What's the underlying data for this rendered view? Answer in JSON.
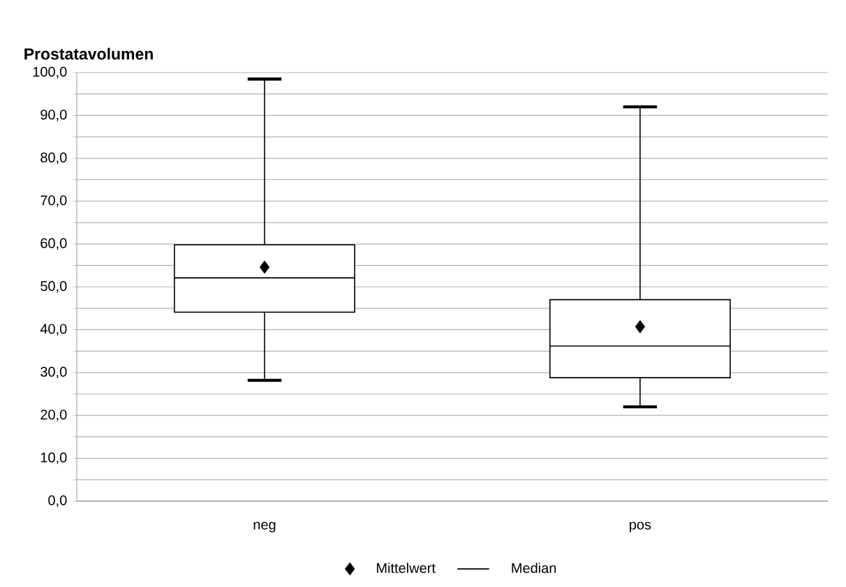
{
  "chart_data": {
    "type": "box",
    "title": "Prostatavolumen",
    "categories": [
      "neg",
      "pos"
    ],
    "series": [
      {
        "name": "Mittelwert",
        "type": "scatter",
        "marker": "diamond",
        "color": "#000000",
        "x": [
          "neg",
          "pos"
        ],
        "values": [
          54.6,
          40.7
        ]
      },
      {
        "name": "Median",
        "type": "box",
        "color": "#000000",
        "boxes": [
          {
            "low": 28.2,
            "q1": 44.1,
            "median": 52.1,
            "q3": 59.8,
            "high": 98.5
          },
          {
            "low": 22.0,
            "q1": 28.8,
            "median": 36.2,
            "q3": 47.0,
            "high": 92.0
          }
        ]
      }
    ],
    "ylim": [
      0,
      100
    ],
    "yticks": [
      {
        "value": 0,
        "label": "0,0"
      },
      {
        "value": 5,
        "label": null
      },
      {
        "value": 10,
        "label": "10,0"
      },
      {
        "value": 15,
        "label": null
      },
      {
        "value": 20,
        "label": "20,0"
      },
      {
        "value": 25,
        "label": null
      },
      {
        "value": 30,
        "label": "30,0"
      },
      {
        "value": 35,
        "label": null
      },
      {
        "value": 40,
        "label": "40,0"
      },
      {
        "value": 45,
        "label": null
      },
      {
        "value": 50,
        "label": "50,0"
      },
      {
        "value": 55,
        "label": null
      },
      {
        "value": 60,
        "label": "60,0"
      },
      {
        "value": 65,
        "label": null
      },
      {
        "value": 70,
        "label": "70,0"
      },
      {
        "value": 75,
        "label": null
      },
      {
        "value": 80,
        "label": "80,0"
      },
      {
        "value": 85,
        "label": null
      },
      {
        "value": 90,
        "label": "90,0"
      },
      {
        "value": 95,
        "label": null
      },
      {
        "value": 100,
        "label": "100,0"
      }
    ],
    "grid": "y",
    "legend": "bottom"
  }
}
